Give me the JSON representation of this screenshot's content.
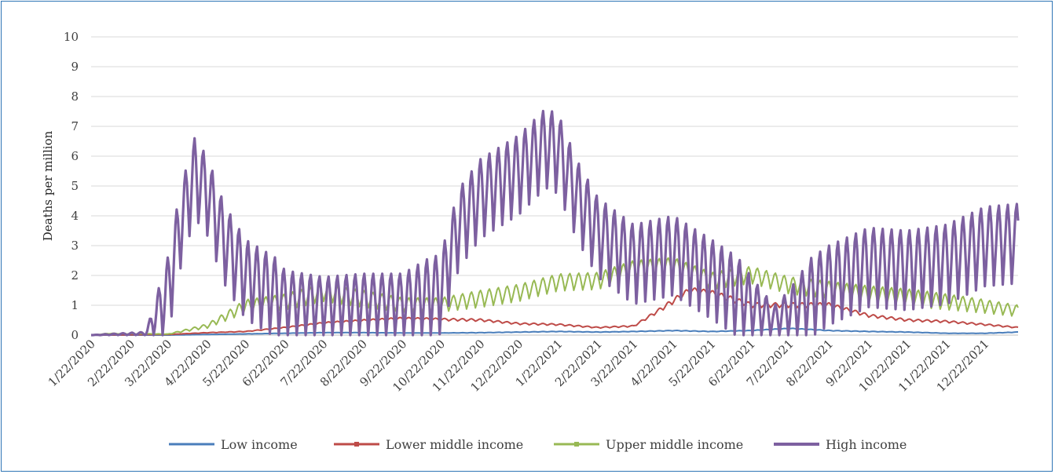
{
  "chart_data": {
    "type": "line",
    "title": "",
    "xlabel": "",
    "ylabel": "Deaths per million",
    "ylim": [
      0,
      10
    ],
    "yticks": [
      "0",
      "1",
      "2",
      "3",
      "4",
      "5",
      "6",
      "7",
      "8",
      "9",
      "10"
    ],
    "x_tick_labels": [
      "1/22/2020",
      "2/22/2020",
      "3/22/2020",
      "4/22/2020",
      "5/22/2020",
      "6/22/2020",
      "7/22/2020",
      "8/22/2020",
      "9/22/2020",
      "10/22/2020",
      "11/22/2020",
      "12/22/2020",
      "1/22/2021",
      "2/22/2021",
      "3/22/2021",
      "4/22/2021",
      "5/22/2021",
      "6/22/2021",
      "7/22/2021",
      "8/22/2021",
      "9/22/2021",
      "10/22/2021",
      "11/22/2021",
      "12/22/2021"
    ],
    "x_start": "2020-01-22",
    "x_end": "2022-01-17",
    "grid": true,
    "legend_position": "bottom",
    "series": [
      {
        "name": "Low  income",
        "color": "#4a7ebb",
        "weekly_swing": 0.08,
        "points": [
          [
            "2020-01-22",
            0
          ],
          [
            "2020-03-22",
            0.0
          ],
          [
            "2020-04-22",
            0.02
          ],
          [
            "2020-05-22",
            0.04
          ],
          [
            "2020-06-22",
            0.06
          ],
          [
            "2020-07-22",
            0.08
          ],
          [
            "2020-08-22",
            0.08
          ],
          [
            "2020-09-22",
            0.07
          ],
          [
            "2020-10-22",
            0.07
          ],
          [
            "2020-11-22",
            0.08
          ],
          [
            "2020-12-22",
            0.1
          ],
          [
            "2021-01-22",
            0.12
          ],
          [
            "2021-02-22",
            0.1
          ],
          [
            "2021-03-22",
            0.12
          ],
          [
            "2021-04-22",
            0.15
          ],
          [
            "2021-05-22",
            0.12
          ],
          [
            "2021-06-22",
            0.15
          ],
          [
            "2021-07-22",
            0.22
          ],
          [
            "2021-08-22",
            0.15
          ],
          [
            "2021-09-22",
            0.12
          ],
          [
            "2021-10-22",
            0.1
          ],
          [
            "2021-11-22",
            0.06
          ],
          [
            "2021-12-22",
            0.06
          ],
          [
            "2022-01-17",
            0.1
          ]
        ]
      },
      {
        "name": "Lower middle income",
        "color": "#be4b48",
        "weekly_swing": 0.1,
        "points": [
          [
            "2020-01-22",
            0
          ],
          [
            "2020-03-22",
            0.02
          ],
          [
            "2020-04-22",
            0.08
          ],
          [
            "2020-05-22",
            0.12
          ],
          [
            "2020-06-22",
            0.25
          ],
          [
            "2020-07-22",
            0.4
          ],
          [
            "2020-08-22",
            0.48
          ],
          [
            "2020-09-22",
            0.55
          ],
          [
            "2020-10-22",
            0.52
          ],
          [
            "2020-11-22",
            0.5
          ],
          [
            "2020-12-22",
            0.38
          ],
          [
            "2021-01-22",
            0.35
          ],
          [
            "2021-02-22",
            0.25
          ],
          [
            "2021-03-22",
            0.3
          ],
          [
            "2021-04-10",
            0.8
          ],
          [
            "2021-05-05",
            1.5
          ],
          [
            "2021-05-22",
            1.4
          ],
          [
            "2021-06-22",
            1.0
          ],
          [
            "2021-07-22",
            1.0
          ],
          [
            "2021-08-22",
            1.0
          ],
          [
            "2021-09-22",
            0.65
          ],
          [
            "2021-10-22",
            0.5
          ],
          [
            "2021-11-22",
            0.45
          ],
          [
            "2021-12-22",
            0.35
          ],
          [
            "2022-01-17",
            0.25
          ]
        ]
      },
      {
        "name": "Upper middle income",
        "color": "#98b954",
        "weekly_swing": 0.3,
        "points": [
          [
            "2020-01-22",
            0
          ],
          [
            "2020-02-05",
            0.05
          ],
          [
            "2020-03-22",
            0.03
          ],
          [
            "2020-04-22",
            0.3
          ],
          [
            "2020-05-22",
            0.95
          ],
          [
            "2020-06-22",
            1.1
          ],
          [
            "2020-07-22",
            1.4
          ],
          [
            "2020-08-22",
            1.2
          ],
          [
            "2020-09-22",
            1.0
          ],
          [
            "2020-10-22",
            1.0
          ],
          [
            "2020-11-22",
            1.2
          ],
          [
            "2020-12-22",
            1.4
          ],
          [
            "2021-01-22",
            1.75
          ],
          [
            "2021-02-22",
            1.8
          ],
          [
            "2021-03-22",
            2.2
          ],
          [
            "2021-04-22",
            2.3
          ],
          [
            "2021-05-22",
            1.8
          ],
          [
            "2021-06-22",
            2.0
          ],
          [
            "2021-07-22",
            1.65
          ],
          [
            "2021-08-22",
            1.5
          ],
          [
            "2021-09-22",
            1.35
          ],
          [
            "2021-10-22",
            1.25
          ],
          [
            "2021-11-22",
            1.1
          ],
          [
            "2021-12-22",
            0.95
          ],
          [
            "2022-01-17",
            0.8
          ]
        ]
      },
      {
        "name": "High income",
        "color": "#7d60a0",
        "weekly_swing": 1.4,
        "points": [
          [
            "2020-01-22",
            0
          ],
          [
            "2020-03-05",
            0.05
          ],
          [
            "2020-03-22",
            1.2
          ],
          [
            "2020-04-01",
            3.5
          ],
          [
            "2020-04-12",
            5.2
          ],
          [
            "2020-04-22",
            4.6
          ],
          [
            "2020-05-05",
            3.0
          ],
          [
            "2020-05-22",
            1.8
          ],
          [
            "2020-06-22",
            1.0
          ],
          [
            "2020-07-22",
            0.9
          ],
          [
            "2020-08-22",
            0.95
          ],
          [
            "2020-09-22",
            0.95
          ],
          [
            "2020-10-22",
            1.3
          ],
          [
            "2020-11-05",
            3.5
          ],
          [
            "2020-11-22",
            4.5
          ],
          [
            "2020-12-22",
            5.3
          ],
          [
            "2021-01-12",
            6.2
          ],
          [
            "2021-01-22",
            6.0
          ],
          [
            "2021-02-05",
            4.5
          ],
          [
            "2021-02-22",
            3.2
          ],
          [
            "2021-03-22",
            2.3
          ],
          [
            "2021-04-22",
            2.6
          ],
          [
            "2021-05-22",
            1.8
          ],
          [
            "2021-06-22",
            0.9
          ],
          [
            "2021-07-10",
            0.45
          ],
          [
            "2021-07-22",
            0.7
          ],
          [
            "2021-08-22",
            1.6
          ],
          [
            "2021-09-22",
            2.2
          ],
          [
            "2021-10-22",
            2.1
          ],
          [
            "2021-11-22",
            2.3
          ],
          [
            "2021-12-22",
            2.9
          ],
          [
            "2022-01-17",
            3.0
          ]
        ]
      }
    ]
  }
}
